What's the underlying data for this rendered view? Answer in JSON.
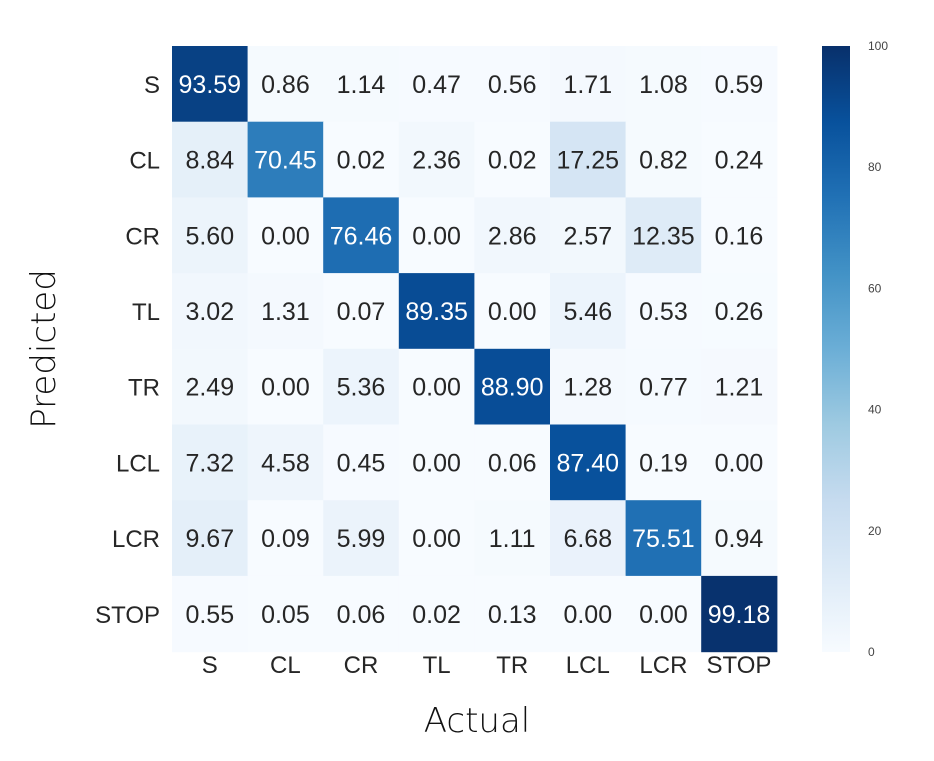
{
  "chart_data": {
    "type": "heatmap",
    "xlabel": "Actual",
    "ylabel": "Predicted",
    "x_categories": [
      "S",
      "CL",
      "CR",
      "TL",
      "TR",
      "LCL",
      "LCR",
      "STOP"
    ],
    "y_categories": [
      "S",
      "CL",
      "CR",
      "TL",
      "TR",
      "LCL",
      "LCR",
      "STOP"
    ],
    "values": [
      [
        93.59,
        0.86,
        1.14,
        0.47,
        0.56,
        1.71,
        1.08,
        0.59
      ],
      [
        8.84,
        70.45,
        0.02,
        2.36,
        0.02,
        17.25,
        0.82,
        0.24
      ],
      [
        5.6,
        0.0,
        76.46,
        0.0,
        2.86,
        2.57,
        12.35,
        0.16
      ],
      [
        3.02,
        1.31,
        0.07,
        89.35,
        0.0,
        5.46,
        0.53,
        0.26
      ],
      [
        2.49,
        0.0,
        5.36,
        0.0,
        88.9,
        1.28,
        0.77,
        1.21
      ],
      [
        7.32,
        4.58,
        0.45,
        0.0,
        0.06,
        87.4,
        0.19,
        0.0
      ],
      [
        9.67,
        0.09,
        5.99,
        0.0,
        1.11,
        6.68,
        75.51,
        0.94
      ],
      [
        0.55,
        0.05,
        0.06,
        0.02,
        0.13,
        0.0,
        0.0,
        99.18
      ]
    ],
    "value_labels": [
      [
        "93.59",
        "0.86",
        "1.14",
        "0.47",
        "0.56",
        "1.71",
        "1.08",
        "0.59"
      ],
      [
        "8.84",
        "70.45",
        "0.02",
        "2.36",
        "0.02",
        "17.25",
        "0.82",
        "0.24"
      ],
      [
        "5.60",
        "0.00",
        "76.46",
        "0.00",
        "2.86",
        "2.57",
        "12.35",
        "0.16"
      ],
      [
        "3.02",
        "1.31",
        "0.07",
        "89.35",
        "0.00",
        "5.46",
        "0.53",
        "0.26"
      ],
      [
        "2.49",
        "0.00",
        "5.36",
        "0.00",
        "88.90",
        "1.28",
        "0.77",
        "1.21"
      ],
      [
        "7.32",
        "4.58",
        "0.45",
        "0.00",
        "0.06",
        "87.40",
        "0.19",
        "0.00"
      ],
      [
        "9.67",
        "0.09",
        "5.99",
        "0.00",
        "1.11",
        "6.68",
        "75.51",
        "0.94"
      ],
      [
        "0.55",
        "0.05",
        "0.06",
        "0.02",
        "0.13",
        "0.00",
        "0.00",
        "99.18"
      ]
    ],
    "colormap": "Blues",
    "colormap_low": "#f7fbff",
    "colormap_high": "#08306b",
    "vmin": 0,
    "vmax": 100,
    "colorbar_ticks": [
      "0",
      "20",
      "40",
      "60",
      "80",
      "100"
    ],
    "grid": false,
    "legend": "colorbar-right"
  }
}
